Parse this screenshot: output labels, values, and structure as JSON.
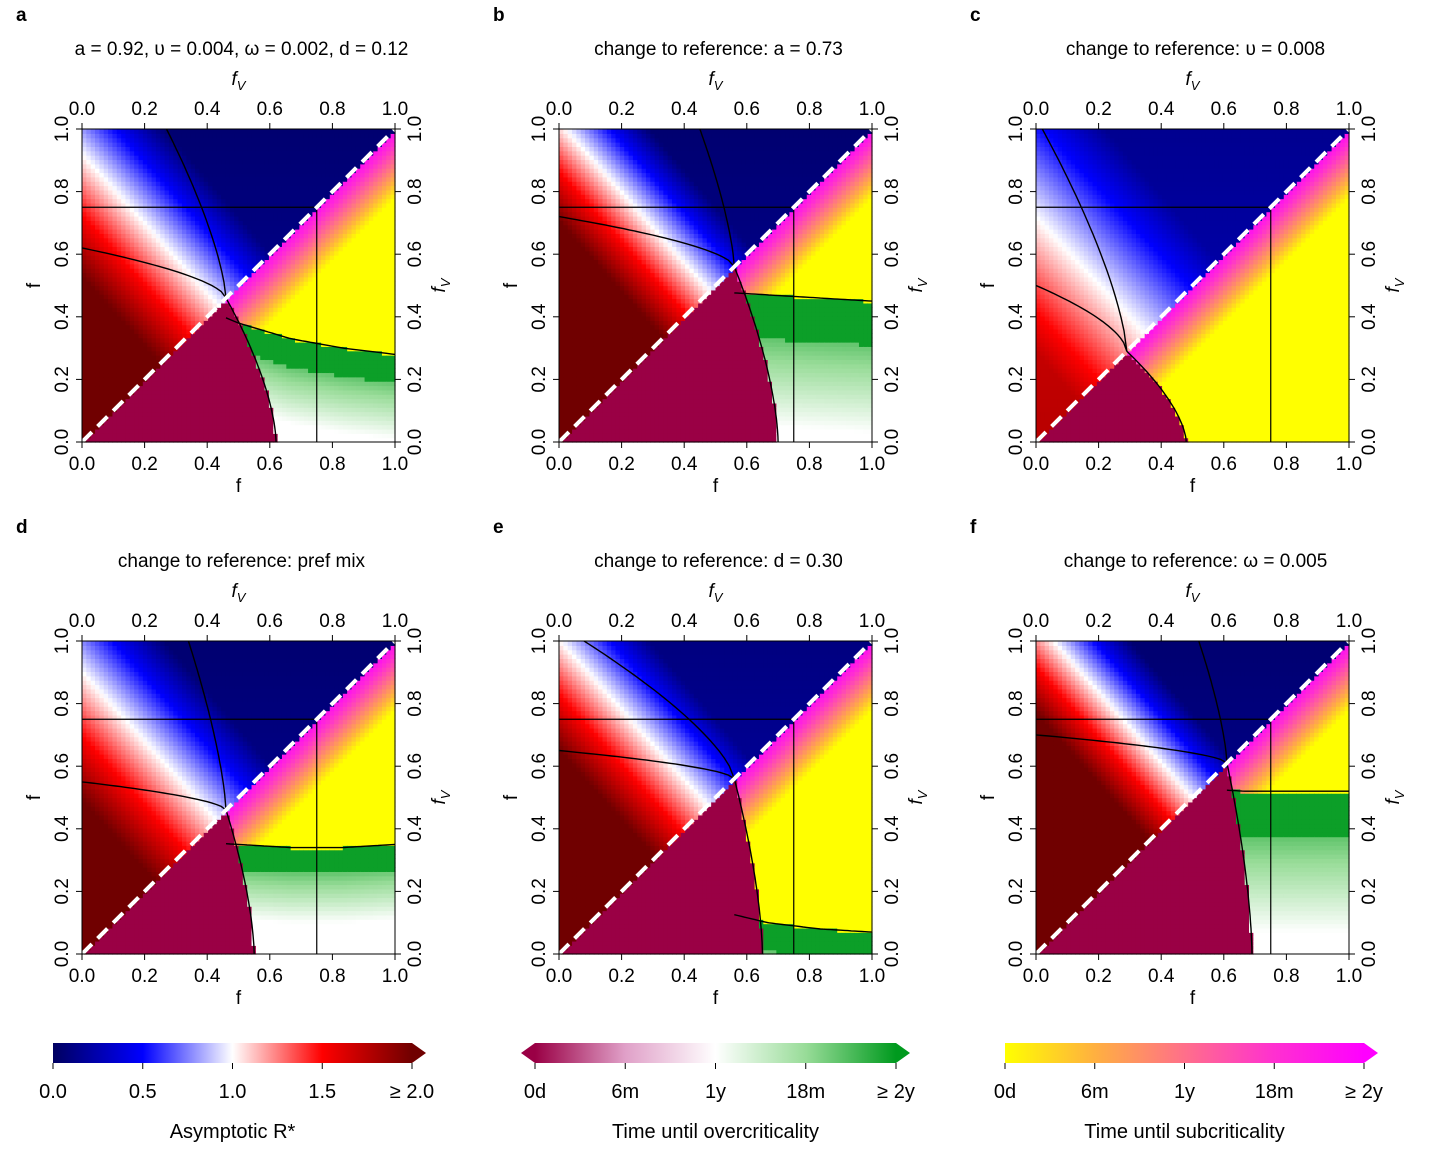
{
  "chart_data": {
    "type": "heatmap",
    "axis": {
      "xlabel_bottom": "f",
      "ylabel_left": "f",
      "xlabel_top": "f",
      "ylabel_right": "f",
      "label_subscript": "V",
      "ticks": [
        "0.0",
        "0.2",
        "0.4",
        "0.6",
        "0.8",
        "1.0"
      ],
      "xlim": [
        0,
        1
      ],
      "ylim": [
        0,
        1
      ]
    },
    "panels": [
      {
        "label": "a",
        "title": "a = 0.92, υ = 0.004, ω = 0.002, d = 0.12",
        "cross": 0.46,
        "crit_right": 0.62,
        "crit_left_top": 0.27,
        "crit_left_y0": 0.62,
        "top_boundary": [
          0.62,
          0.55,
          0.45,
          0.38,
          0.33,
          0.3,
          0.28
        ],
        "over_band": 0.09,
        "r_center": 1.35,
        "blue_min": 0.05,
        "red_max": 2.1,
        "sub_lower": false,
        "ref_x": 0.75,
        "ref_y": 0.75
      },
      {
        "label": "b",
        "title": "change to reference: a = 0.73",
        "cross": 0.56,
        "crit_right": 0.7,
        "crit_left_top": 0.45,
        "crit_left_y0": 0.72,
        "top_boundary": [
          0.56,
          0.53,
          0.5,
          0.48,
          0.47,
          0.46,
          0.45
        ],
        "over_band": 0.14,
        "r_center": 1.6,
        "blue_min": 0.05,
        "red_max": 2.4,
        "sub_lower": false,
        "ref_x": 0.75,
        "ref_y": 0.75
      },
      {
        "label": "c",
        "title": "change to reference: υ = 0.008",
        "cross": 0.29,
        "crit_right": 0.48,
        "crit_left_top": 0.02,
        "crit_left_y0": 0.5,
        "top_boundary": [
          0.29,
          0.0,
          0.0,
          0.0,
          0.0,
          0.0,
          0.0
        ],
        "over_band": 0.02,
        "r_center": 1.15,
        "blue_min": 0.15,
        "red_max": 1.6,
        "sub_lower": true,
        "ref_x": 0.75,
        "ref_y": 0.75
      },
      {
        "label": "d",
        "title": "change to reference: pref mix",
        "cross": 0.46,
        "crit_right": 0.55,
        "crit_left_top": 0.34,
        "crit_left_y0": 0.55,
        "top_boundary": [
          0.46,
          0.4,
          0.36,
          0.35,
          0.34,
          0.34,
          0.35
        ],
        "over_band": 0.08,
        "r_center": 1.3,
        "blue_min": 0.05,
        "red_max": 2.0,
        "sub_lower": false,
        "ref_x": 0.75,
        "ref_y": 0.75
      },
      {
        "label": "e",
        "title": "change to reference: d = 0.30",
        "cross": 0.56,
        "crit_right": 0.65,
        "crit_left_top": 0.08,
        "crit_left_y0": 0.65,
        "top_boundary": [
          0.56,
          0.3,
          0.2,
          0.14,
          0.1,
          0.08,
          0.07
        ],
        "over_band": 0.09,
        "r_center": 1.45,
        "blue_min": 0.1,
        "red_max": 2.2,
        "sub_lower": false,
        "ref_x": 0.75,
        "ref_y": 0.75
      },
      {
        "label": "f",
        "title": "change to reference: ω = 0.005",
        "cross": 0.61,
        "crit_right": 0.69,
        "crit_left_top": 0.52,
        "crit_left_y0": 0.7,
        "top_boundary": [
          0.61,
          0.57,
          0.55,
          0.53,
          0.52,
          0.52,
          0.52
        ],
        "over_band": 0.15,
        "r_center": 1.75,
        "blue_min": 0.05,
        "red_max": 2.5,
        "sub_lower": false,
        "ref_x": 0.75,
        "ref_y": 0.75
      }
    ],
    "colorbars": [
      {
        "label": "Asymptotic R*",
        "ticks": [
          "0.0",
          "0.5",
          "1.0",
          "1.5",
          "≥ 2.0"
        ],
        "colors": [
          "#000060",
          "#0000ff",
          "#ffffff",
          "#ff0000",
          "#700000"
        ],
        "extend": "right"
      },
      {
        "label": "Time until overcriticality",
        "ticks": [
          "0d",
          "6m",
          "1y",
          "18m",
          "≥ 2y"
        ],
        "colors": [
          "#9a0045",
          "#e0a0c8",
          "#ffffff",
          "#98dc98",
          "#009a1e"
        ],
        "extend": "both"
      },
      {
        "label": "Time until subcriticality",
        "ticks": [
          "0d",
          "6m",
          "1y",
          "18m",
          "≥ 2y"
        ],
        "colors": [
          "#ffff00",
          "#ffb040",
          "#ff6f8a",
          "#ff30d0",
          "#ff00ff"
        ],
        "extend": "right"
      }
    ]
  }
}
